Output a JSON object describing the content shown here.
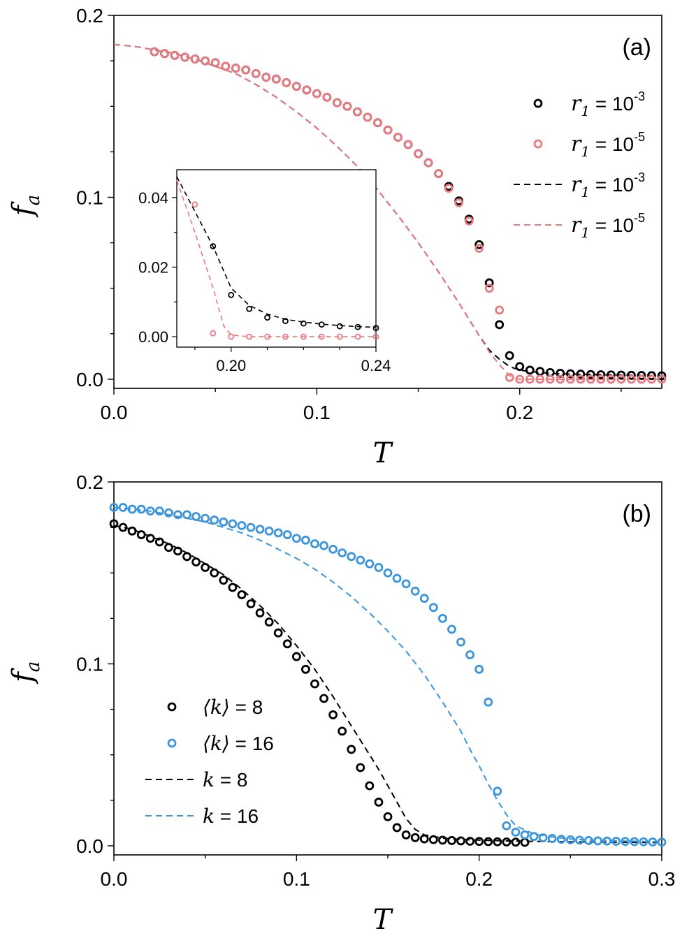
{
  "chart_data": [
    {
      "panel_label": "(a)",
      "type": "scatter",
      "xlabel": "T",
      "ylabel": {
        "main": "f",
        "sub": "a"
      },
      "xlim": [
        0.0,
        0.27
      ],
      "ylim": [
        -0.005,
        0.2
      ],
      "xticks": [
        "0.0",
        "0.1",
        "0.2"
      ],
      "yticks": [
        "0.0",
        "0.1",
        "0.2"
      ],
      "legend": {
        "placement": "right",
        "entries": [
          {
            "label": "r",
            "sub": "1",
            "base": " = 10",
            "exp": "-3",
            "style": "circle",
            "color": "#000000"
          },
          {
            "label": "r",
            "sub": "1",
            "base": " = 10",
            "exp": "-5",
            "style": "circle",
            "color": "#e87a80"
          },
          {
            "label": "r",
            "sub": "1",
            "base": " = 10",
            "exp": "-3",
            "style": "dash",
            "color": "#000000"
          },
          {
            "label": "r",
            "sub": "1",
            "base": " = 10",
            "exp": "-5",
            "style": "dash",
            "color": "#e87a80"
          }
        ]
      },
      "series": [
        {
          "style": "circle",
          "color": "#000000",
          "x": [
            0.02,
            0.025,
            0.03,
            0.035,
            0.04,
            0.045,
            0.05,
            0.055,
            0.06,
            0.065,
            0.07,
            0.075,
            0.08,
            0.085,
            0.09,
            0.095,
            0.1,
            0.105,
            0.11,
            0.115,
            0.12,
            0.125,
            0.13,
            0.135,
            0.14,
            0.145,
            0.15,
            0.155,
            0.16,
            0.165,
            0.17,
            0.175,
            0.18,
            0.185,
            0.19,
            0.195,
            0.2,
            0.205,
            0.21,
            0.215,
            0.22,
            0.225,
            0.23,
            0.235,
            0.24,
            0.245,
            0.25,
            0.255,
            0.26,
            0.265,
            0.27
          ],
          "y": [
            0.18,
            0.179,
            0.178,
            0.177,
            0.176,
            0.175,
            0.174,
            0.172,
            0.171,
            0.17,
            0.168,
            0.166,
            0.165,
            0.163,
            0.161,
            0.159,
            0.157,
            0.155,
            0.152,
            0.15,
            0.147,
            0.144,
            0.141,
            0.137,
            0.133,
            0.129,
            0.124,
            0.119,
            0.113,
            0.106,
            0.098,
            0.088,
            0.074,
            0.053,
            0.03,
            0.013,
            0.007,
            0.005,
            0.0043,
            0.0037,
            0.0033,
            0.003,
            0.0028,
            0.0026,
            0.0025,
            0.0024,
            0.0023,
            0.0022,
            0.0021,
            0.002,
            0.0019
          ]
        },
        {
          "style": "circle",
          "color": "#e87a80",
          "x": [
            0.02,
            0.025,
            0.03,
            0.035,
            0.04,
            0.045,
            0.05,
            0.055,
            0.06,
            0.065,
            0.07,
            0.075,
            0.08,
            0.085,
            0.09,
            0.095,
            0.1,
            0.105,
            0.11,
            0.115,
            0.12,
            0.125,
            0.13,
            0.135,
            0.14,
            0.145,
            0.15,
            0.155,
            0.16,
            0.165,
            0.17,
            0.175,
            0.18,
            0.185,
            0.19,
            0.195,
            0.2,
            0.205,
            0.21,
            0.215,
            0.22,
            0.225,
            0.23,
            0.235,
            0.24,
            0.245,
            0.25,
            0.255,
            0.26,
            0.265,
            0.27
          ],
          "y": [
            0.18,
            0.179,
            0.178,
            0.177,
            0.176,
            0.175,
            0.174,
            0.172,
            0.171,
            0.17,
            0.168,
            0.166,
            0.165,
            0.163,
            0.161,
            0.159,
            0.157,
            0.155,
            0.152,
            0.15,
            0.147,
            0.144,
            0.141,
            0.137,
            0.133,
            0.129,
            0.124,
            0.119,
            0.113,
            0.105,
            0.097,
            0.087,
            0.072,
            0.05,
            0.038,
            0.001,
            0.0,
            0.0,
            0.0,
            0.0,
            0.0,
            0.0,
            0.0,
            0.0,
            0.0,
            0.0,
            0.0,
            0.0,
            0.0,
            0.0,
            0.0
          ]
        },
        {
          "style": "dash",
          "color": "#000000",
          "x": [
            0.0,
            0.01,
            0.02,
            0.03,
            0.04,
            0.05,
            0.06,
            0.07,
            0.08,
            0.09,
            0.1,
            0.11,
            0.12,
            0.13,
            0.14,
            0.15,
            0.16,
            0.17,
            0.175,
            0.18,
            0.185,
            0.19,
            0.195,
            0.2,
            0.205,
            0.21,
            0.215,
            0.22,
            0.23,
            0.24,
            0.25,
            0.26,
            0.27
          ],
          "y": [
            0.184,
            0.183,
            0.181,
            0.179,
            0.176,
            0.172,
            0.168,
            0.162,
            0.155,
            0.147,
            0.138,
            0.128,
            0.117,
            0.104,
            0.09,
            0.075,
            0.059,
            0.042,
            0.033,
            0.024,
            0.016,
            0.011,
            0.007,
            0.005,
            0.0043,
            0.0037,
            0.0033,
            0.003,
            0.0027,
            0.0025,
            0.0023,
            0.0021,
            0.002
          ]
        },
        {
          "style": "dash",
          "color": "#e87a80",
          "x": [
            0.0,
            0.01,
            0.02,
            0.03,
            0.04,
            0.05,
            0.06,
            0.07,
            0.08,
            0.09,
            0.1,
            0.11,
            0.12,
            0.13,
            0.14,
            0.15,
            0.16,
            0.17,
            0.175,
            0.18,
            0.185,
            0.19,
            0.195,
            0.198,
            0.2,
            0.21,
            0.22,
            0.24,
            0.27
          ],
          "y": [
            0.184,
            0.183,
            0.181,
            0.179,
            0.176,
            0.172,
            0.168,
            0.162,
            0.155,
            0.147,
            0.138,
            0.128,
            0.117,
            0.104,
            0.09,
            0.075,
            0.059,
            0.042,
            0.033,
            0.024,
            0.015,
            0.008,
            0.002,
            0.0005,
            0.0,
            0.0,
            0.0,
            0.0,
            0.0
          ]
        }
      ],
      "inset": {
        "xlim": [
          0.185,
          0.24
        ],
        "ylim": [
          -0.003,
          0.048
        ],
        "xticks": [
          "0.20",
          "0.24"
        ],
        "yticks": [
          "0.00",
          "0.02",
          "0.04"
        ],
        "series": [
          {
            "style": "circle",
            "color": "#000000",
            "x": [
              0.195,
              0.2,
              0.205,
              0.21,
              0.215,
              0.22,
              0.225,
              0.23,
              0.235,
              0.24
            ],
            "y": [
              0.026,
              0.012,
              0.008,
              0.0055,
              0.0045,
              0.0038,
              0.0035,
              0.003,
              0.0028,
              0.0025
            ]
          },
          {
            "style": "circle",
            "color": "#e87a80",
            "x": [
              0.19,
              0.195,
              0.2,
              0.205,
              0.21,
              0.215,
              0.22,
              0.225,
              0.23,
              0.235,
              0.24
            ],
            "y": [
              0.038,
              0.001,
              0.0,
              0.0,
              0.0,
              0.0,
              0.0,
              0.0,
              0.0,
              0.0,
              0.0
            ]
          },
          {
            "style": "dash",
            "color": "#000000",
            "x": [
              0.185,
              0.19,
              0.195,
              0.2,
              0.205,
              0.21,
              0.215,
              0.22,
              0.225,
              0.23,
              0.235,
              0.24
            ],
            "y": [
              0.046,
              0.036,
              0.026,
              0.014,
              0.009,
              0.0065,
              0.005,
              0.0042,
              0.0036,
              0.0032,
              0.0029,
              0.0027
            ]
          },
          {
            "style": "dash",
            "color": "#e87a80",
            "x": [
              0.185,
              0.19,
              0.195,
              0.198,
              0.2,
              0.205,
              0.21,
              0.22,
              0.23,
              0.24
            ],
            "y": [
              0.045,
              0.03,
              0.014,
              0.003,
              0.0005,
              0.0,
              0.0,
              0.0,
              0.0,
              0.0
            ]
          }
        ]
      }
    },
    {
      "panel_label": "(b)",
      "type": "scatter",
      "xlabel": "T",
      "ylabel": {
        "main": "f",
        "sub": "a"
      },
      "xlim": [
        0.0,
        0.3
      ],
      "ylim": [
        -0.005,
        0.2
      ],
      "xticks": [
        "0.0",
        "0.1",
        "0.2",
        "0.3"
      ],
      "yticks": [
        "0.0",
        "0.1",
        "0.2"
      ],
      "legend": {
        "placement": "lower-left",
        "entries": [
          {
            "label": "⟨k⟩",
            "base": " = 8",
            "style": "circle",
            "color": "#000000"
          },
          {
            "label": "⟨k⟩",
            "base": " = 16",
            "style": "circle",
            "color": "#3a95dd"
          },
          {
            "label": "k",
            "base": " = 8",
            "style": "dash",
            "color": "#000000"
          },
          {
            "label": "k",
            "base": " = 16",
            "style": "dash",
            "color": "#3a95dd"
          }
        ]
      },
      "series": [
        {
          "style": "circle",
          "color": "#000000",
          "x": [
            0.0,
            0.005,
            0.01,
            0.015,
            0.02,
            0.025,
            0.03,
            0.035,
            0.04,
            0.045,
            0.05,
            0.055,
            0.06,
            0.065,
            0.07,
            0.075,
            0.08,
            0.085,
            0.09,
            0.095,
            0.1,
            0.105,
            0.11,
            0.115,
            0.12,
            0.125,
            0.13,
            0.135,
            0.14,
            0.145,
            0.15,
            0.155,
            0.16,
            0.165,
            0.17,
            0.175,
            0.18,
            0.185,
            0.19,
            0.195,
            0.2,
            0.205,
            0.21,
            0.215,
            0.22,
            0.225
          ],
          "y": [
            0.177,
            0.175,
            0.173,
            0.171,
            0.169,
            0.167,
            0.164,
            0.162,
            0.159,
            0.156,
            0.153,
            0.15,
            0.146,
            0.142,
            0.138,
            0.133,
            0.128,
            0.123,
            0.117,
            0.111,
            0.104,
            0.097,
            0.089,
            0.081,
            0.072,
            0.063,
            0.053,
            0.043,
            0.033,
            0.024,
            0.016,
            0.01,
            0.006,
            0.0045,
            0.0038,
            0.0034,
            0.0031,
            0.0029,
            0.0027,
            0.0025,
            0.0024,
            0.0023,
            0.0022,
            0.0021,
            0.002,
            0.0019
          ]
        },
        {
          "style": "circle",
          "color": "#3a95dd",
          "x": [
            0.0,
            0.005,
            0.01,
            0.015,
            0.02,
            0.025,
            0.03,
            0.035,
            0.04,
            0.045,
            0.05,
            0.055,
            0.06,
            0.065,
            0.07,
            0.075,
            0.08,
            0.085,
            0.09,
            0.095,
            0.1,
            0.105,
            0.11,
            0.115,
            0.12,
            0.125,
            0.13,
            0.135,
            0.14,
            0.145,
            0.15,
            0.155,
            0.16,
            0.165,
            0.17,
            0.175,
            0.18,
            0.185,
            0.19,
            0.195,
            0.2,
            0.205,
            0.21,
            0.215,
            0.22,
            0.225,
            0.23,
            0.235,
            0.24,
            0.245,
            0.25,
            0.255,
            0.26,
            0.265,
            0.27,
            0.275,
            0.28,
            0.285,
            0.29,
            0.295,
            0.3
          ],
          "y": [
            0.186,
            0.186,
            0.185,
            0.185,
            0.184,
            0.184,
            0.183,
            0.182,
            0.182,
            0.181,
            0.18,
            0.179,
            0.178,
            0.177,
            0.176,
            0.175,
            0.174,
            0.173,
            0.172,
            0.171,
            0.169,
            0.168,
            0.166,
            0.165,
            0.163,
            0.161,
            0.159,
            0.157,
            0.155,
            0.153,
            0.15,
            0.147,
            0.144,
            0.14,
            0.136,
            0.131,
            0.125,
            0.119,
            0.112,
            0.105,
            0.097,
            0.079,
            0.03,
            0.011,
            0.0075,
            0.006,
            0.0051,
            0.0044,
            0.004,
            0.0036,
            0.0033,
            0.0031,
            0.0029,
            0.0027,
            0.0026,
            0.0025,
            0.0024,
            0.0023,
            0.0022,
            0.0021,
            0.002
          ]
        },
        {
          "style": "dash",
          "color": "#000000",
          "x": [
            0.0,
            0.01,
            0.02,
            0.03,
            0.04,
            0.05,
            0.06,
            0.07,
            0.08,
            0.09,
            0.1,
            0.11,
            0.12,
            0.13,
            0.14,
            0.145,
            0.15,
            0.155,
            0.16,
            0.165,
            0.17,
            0.18,
            0.19,
            0.2,
            0.22,
            0.24,
            0.26,
            0.28,
            0.3
          ],
          "y": [
            0.176,
            0.174,
            0.17,
            0.166,
            0.161,
            0.155,
            0.149,
            0.141,
            0.132,
            0.122,
            0.11,
            0.097,
            0.082,
            0.066,
            0.05,
            0.042,
            0.033,
            0.024,
            0.015,
            0.009,
            0.006,
            0.0042,
            0.0035,
            0.0031,
            0.0026,
            0.0023,
            0.0021,
            0.0019,
            0.0018
          ]
        },
        {
          "style": "dash",
          "color": "#3a95dd",
          "x": [
            0.0,
            0.01,
            0.02,
            0.03,
            0.04,
            0.05,
            0.06,
            0.07,
            0.08,
            0.09,
            0.1,
            0.11,
            0.12,
            0.13,
            0.14,
            0.15,
            0.16,
            0.17,
            0.18,
            0.19,
            0.195,
            0.2,
            0.205,
            0.21,
            0.215,
            0.22,
            0.23,
            0.24,
            0.25,
            0.26,
            0.28,
            0.3
          ],
          "y": [
            0.186,
            0.185,
            0.184,
            0.182,
            0.18,
            0.178,
            0.175,
            0.172,
            0.168,
            0.163,
            0.158,
            0.152,
            0.145,
            0.137,
            0.128,
            0.118,
            0.107,
            0.094,
            0.079,
            0.063,
            0.053,
            0.044,
            0.034,
            0.025,
            0.017,
            0.011,
            0.0065,
            0.0048,
            0.0038,
            0.0032,
            0.0026,
            0.0022
          ]
        }
      ]
    }
  ]
}
